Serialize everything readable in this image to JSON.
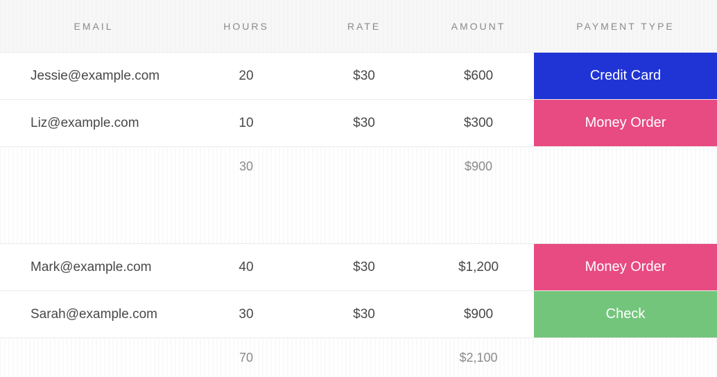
{
  "table": {
    "columns": {
      "email": "EMAIL",
      "hours": "HOURS",
      "rate": "RATE",
      "amount": "AMOUNT",
      "payment_type": "PAYMENT TYPE"
    },
    "groups": [
      {
        "rows": [
          {
            "email": "Jessie@example.com",
            "hours": "20",
            "rate": "$30",
            "amount": "$600",
            "payment_type": "Credit Card",
            "badge_color": "#2034d6"
          },
          {
            "email": "Liz@example.com",
            "hours": "10",
            "rate": "$30",
            "amount": "$300",
            "payment_type": "Money Order",
            "badge_color": "#e84a82"
          }
        ],
        "subtotal": {
          "hours": "30",
          "amount": "$900"
        }
      },
      {
        "rows": [
          {
            "email": "Mark@example.com",
            "hours": "40",
            "rate": "$30",
            "amount": "$1,200",
            "payment_type": "Money Order",
            "badge_color": "#e84a82"
          },
          {
            "email": "Sarah@example.com",
            "hours": "30",
            "rate": "$30",
            "amount": "$900",
            "payment_type": "Check",
            "badge_color": "#74c57c"
          }
        ],
        "subtotal": {
          "hours": "70",
          "amount": "$2,100"
        }
      }
    ]
  },
  "style": {
    "header_text_color": "#8a8a8a",
    "body_text_color": "#484848",
    "subtotal_text_color": "#8a8a8a",
    "row_border_color": "#ececec"
  }
}
